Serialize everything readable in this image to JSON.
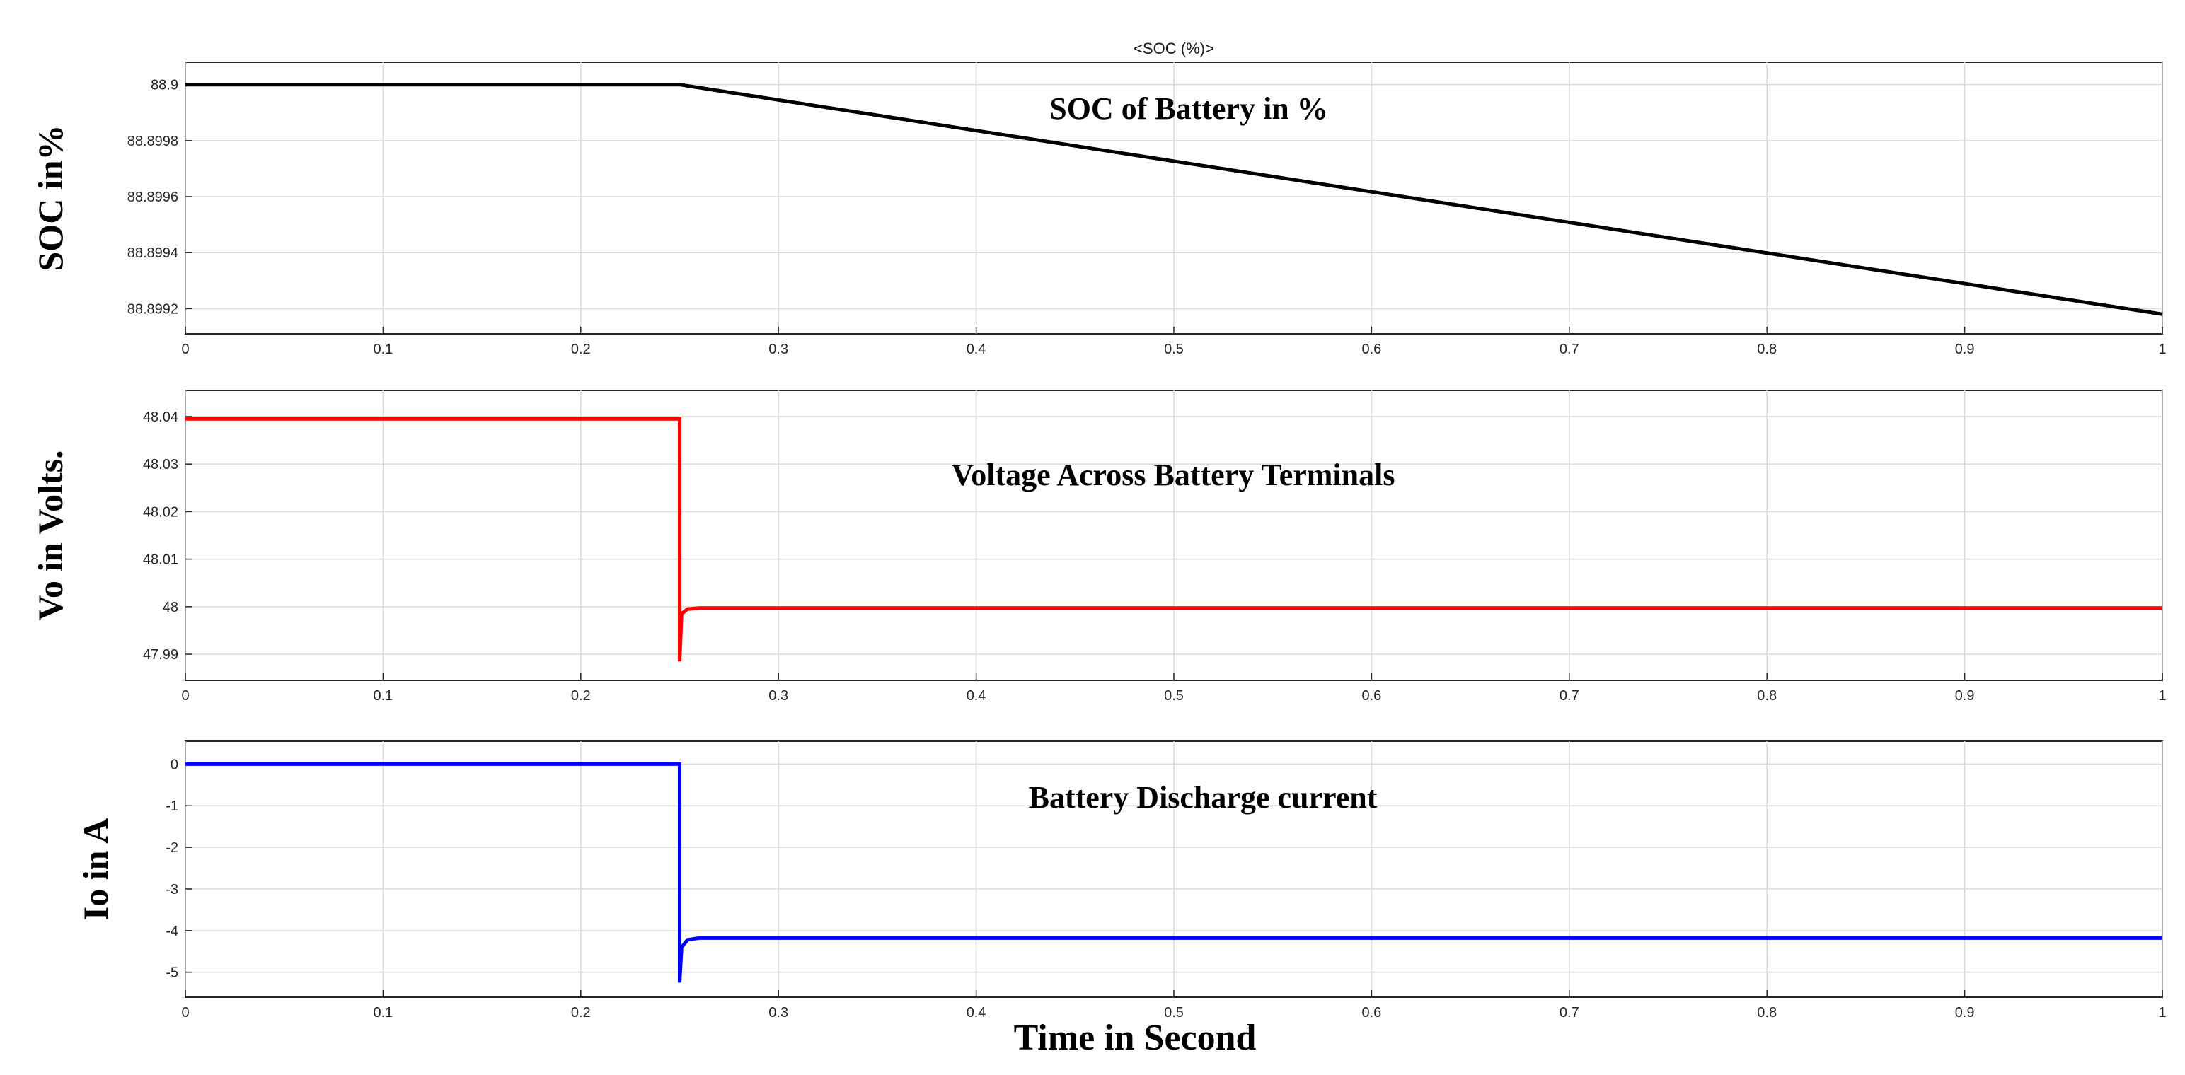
{
  "figure": {
    "x_label": "Time in Second"
  },
  "chart_data": [
    {
      "type": "line",
      "title": "<SOC (%)>",
      "annotation": "SOC of Battery in %",
      "ylabel": "SOC in%",
      "xlim": [
        0,
        1
      ],
      "ylim": [
        88.89911,
        88.90008
      ],
      "x_ticks": [
        0,
        0.1,
        0.2,
        0.3,
        0.4,
        0.5,
        0.6,
        0.7,
        0.8,
        0.9,
        1
      ],
      "x_tick_labels": [
        "0",
        "0.1",
        "0.2",
        "0.3",
        "0.4",
        "0.5",
        "0.6",
        "0.7",
        "0.8",
        "0.9",
        "1"
      ],
      "y_ticks": [
        88.9,
        88.8998,
        88.8996,
        88.8994,
        88.8992
      ],
      "y_tick_labels": [
        "88.9",
        "88.8998",
        "88.8996",
        "88.8994",
        "88.8992"
      ],
      "grid": true,
      "series": [
        {
          "color": "#000000",
          "x": [
            0,
            0.25,
            1
          ],
          "y": [
            88.9,
            88.9,
            88.89918
          ]
        }
      ]
    },
    {
      "type": "line",
      "title": "",
      "annotation": "Voltage Across Battery Terminals",
      "ylabel": "Vo in Volts.",
      "xlim": [
        0,
        1
      ],
      "ylim": [
        47.9845,
        48.0455
      ],
      "x_ticks": [
        0,
        0.1,
        0.2,
        0.3,
        0.4,
        0.5,
        0.6,
        0.7,
        0.8,
        0.9,
        1
      ],
      "x_tick_labels": [
        "0",
        "0.1",
        "0.2",
        "0.3",
        "0.4",
        "0.5",
        "0.6",
        "0.7",
        "0.8",
        "0.9",
        "1"
      ],
      "y_ticks": [
        48.04,
        48.03,
        48.02,
        48.01,
        48,
        47.99
      ],
      "y_tick_labels": [
        "48.04",
        "48.03",
        "48.02",
        "48.01",
        "48",
        "47.99"
      ],
      "grid": true,
      "series": [
        {
          "color": "#ff0000",
          "x": [
            0,
            0.25,
            0.25,
            0.251,
            0.254,
            0.26,
            1
          ],
          "y": [
            48.0395,
            48.0395,
            47.9885,
            47.9985,
            47.9995,
            47.9997,
            47.9997
          ]
        }
      ]
    },
    {
      "type": "line",
      "title": "",
      "annotation": "Battery Discharge current",
      "ylabel": "Io in A",
      "xlim": [
        0,
        1
      ],
      "ylim": [
        -5.6,
        0.55
      ],
      "x_ticks": [
        0,
        0.1,
        0.2,
        0.3,
        0.4,
        0.5,
        0.6,
        0.7,
        0.8,
        0.9,
        1
      ],
      "x_tick_labels": [
        "0",
        "0.1",
        "0.2",
        "0.3",
        "0.4",
        "0.5",
        "0.6",
        "0.7",
        "0.8",
        "0.9",
        "1"
      ],
      "y_ticks": [
        0,
        -1,
        -2,
        -3,
        -4,
        -5
      ],
      "y_tick_labels": [
        "0",
        "-1",
        "-2",
        "-3",
        "-4",
        "-5"
      ],
      "grid": true,
      "series": [
        {
          "color": "#0000ff",
          "x": [
            0,
            0.25,
            0.25,
            0.251,
            0.254,
            0.26,
            1
          ],
          "y": [
            0,
            0,
            -5.25,
            -4.4,
            -4.22,
            -4.18,
            -4.18
          ]
        }
      ]
    }
  ]
}
